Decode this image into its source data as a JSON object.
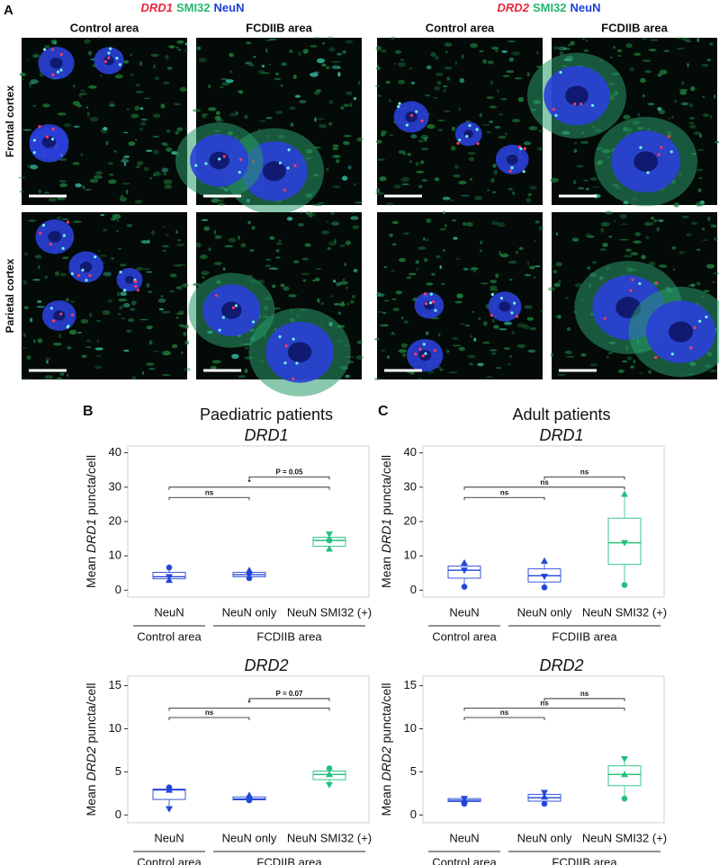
{
  "panel_a": {
    "label": "A",
    "stains": [
      [
        "DRD1",
        "SMI32",
        "NeuN"
      ],
      [
        "DRD2",
        "SMI32",
        "NeuN"
      ]
    ],
    "stain_colors": [
      "#e8253a",
      "#22b86c",
      "#1c3fd6"
    ],
    "columns": [
      "Control area",
      "FCDIIB area",
      "Control area",
      "FCDIIB area"
    ],
    "rows": [
      "Frontal cortex",
      "Parietal cortex"
    ]
  },
  "chart_data": [
    {
      "type": "box",
      "panel": "B",
      "title": "Paediatric patients",
      "subtitle": "DRD1",
      "y_label": [
        "Mean ",
        "DRD1",
        " puncta/cell"
      ],
      "categories": [
        "NeuN",
        "NeuN only",
        "NeuN SMI32 (+)"
      ],
      "colors": [
        "#2346d8",
        "#2346d8",
        "#22c07c"
      ],
      "groups": [
        {
          "label": "Control area",
          "count": 1
        },
        {
          "label": "FCDIIB area",
          "count": 2
        }
      ],
      "whisker_low": [
        2.9,
        3.5,
        12
      ],
      "q1": [
        3.3,
        3.9,
        12.8
      ],
      "median": [
        3.9,
        4.5,
        14.5
      ],
      "q3": [
        5.2,
        5.2,
        15.4
      ],
      "whisker_high": [
        6.6,
        5.8,
        16.3
      ],
      "patients": [
        {
          "marker": "circle",
          "values": [
            6.6,
            3.5,
            14.5
          ]
        },
        {
          "marker": "triangle-up",
          "values": [
            2.9,
            5.8,
            12
          ]
        },
        {
          "marker": "triangle-down",
          "values": [
            3.9,
            4.5,
            16.3
          ]
        }
      ],
      "comparisons": [
        {
          "from": 0,
          "to": 1,
          "label": "ns",
          "y": 27
        },
        {
          "from": 0,
          "to": 2,
          "label": "*",
          "y": 30
        },
        {
          "from": 1,
          "to": 2,
          "label": "P = 0.05",
          "y": 33
        }
      ],
      "ylim": [
        -2,
        42
      ],
      "yticks": [
        0,
        10,
        20,
        30,
        40
      ]
    },
    {
      "type": "box",
      "subtitle": "DRD2",
      "y_label": [
        "Mean ",
        "DRD2",
        " puncta/cell"
      ],
      "categories": [
        "NeuN",
        "NeuN only",
        "NeuN SMI32 (+)"
      ],
      "colors": [
        "#2346d8",
        "#2346d8",
        "#22c07c"
      ],
      "groups": [
        {
          "label": "Control area",
          "count": 1
        },
        {
          "label": "FCDIIB area",
          "count": 2
        }
      ],
      "whisker_low": [
        0.7,
        1.7,
        3.5
      ],
      "q1": [
        1.8,
        1.75,
        4.1
      ],
      "median": [
        2.9,
        1.85,
        4.7
      ],
      "q3": [
        3.0,
        2.1,
        5.1
      ],
      "whisker_high": [
        3.2,
        2.3,
        5.4
      ],
      "patients": [
        {
          "marker": "circle",
          "values": [
            3.2,
            1.7,
            5.4
          ]
        },
        {
          "marker": "triangle-up",
          "values": [
            2.9,
            2.3,
            4.7
          ]
        },
        {
          "marker": "triangle-down",
          "values": [
            0.7,
            1.8,
            3.5
          ]
        }
      ],
      "comparisons": [
        {
          "from": 0,
          "to": 1,
          "label": "ns",
          "y": 11.3
        },
        {
          "from": 0,
          "to": 2,
          "label": "*",
          "y": 12.4
        },
        {
          "from": 1,
          "to": 2,
          "label": "P = 0.07",
          "y": 13.5
        }
      ],
      "ylim": [
        -0.9,
        16.1
      ],
      "yticks": [
        0,
        5,
        10,
        15
      ]
    },
    {
      "type": "box",
      "panel": "C",
      "title": "Adult patients",
      "subtitle": "DRD1",
      "y_label": [
        "Mean ",
        "DRD1",
        " puncta/cell"
      ],
      "categories": [
        "NeuN",
        "NeuN only",
        "NeuN SMI32 (+)"
      ],
      "colors": [
        "#2346d8",
        "#2346d8",
        "#22c07c"
      ],
      "groups": [
        {
          "label": "Control area",
          "count": 1
        },
        {
          "label": "FCDIIB area",
          "count": 2
        }
      ],
      "whisker_low": [
        1,
        0.8,
        1.5
      ],
      "q1": [
        3.5,
        2.4,
        7.5
      ],
      "median": [
        5.8,
        4.2,
        13.8
      ],
      "q3": [
        7,
        6.2,
        21
      ],
      "whisker_high": [
        8,
        8.5,
        28
      ],
      "patients": [
        {
          "marker": "circle",
          "values": [
            1,
            0.8,
            1.5
          ]
        },
        {
          "marker": "triangle-up",
          "values": [
            8,
            8.5,
            28
          ]
        },
        {
          "marker": "triangle-down",
          "values": [
            5.8,
            4,
            13.8
          ]
        }
      ],
      "comparisons": [
        {
          "from": 0,
          "to": 1,
          "label": "ns",
          "y": 27
        },
        {
          "from": 0,
          "to": 2,
          "label": "ns",
          "y": 30
        },
        {
          "from": 1,
          "to": 2,
          "label": "ns",
          "y": 33
        }
      ],
      "ylim": [
        -2,
        42
      ],
      "yticks": [
        0,
        10,
        20,
        30,
        40
      ]
    },
    {
      "type": "box",
      "subtitle": "DRD2",
      "y_label": [
        "Mean ",
        "DRD2",
        " puncta/cell"
      ],
      "categories": [
        "NeuN",
        "NeuN only",
        "NeuN SMI32 (+)"
      ],
      "colors": [
        "#2346d8",
        "#2346d8",
        "#22c07c"
      ],
      "groups": [
        {
          "label": "Control area",
          "count": 1
        },
        {
          "label": "FCDIIB area",
          "count": 2
        }
      ],
      "whisker_low": [
        1.3,
        1.3,
        1.9
      ],
      "q1": [
        1.55,
        1.6,
        3.4
      ],
      "median": [
        1.7,
        2.0,
        4.7
      ],
      "q3": [
        1.9,
        2.4,
        5.7
      ],
      "whisker_high": [
        1.9,
        2.6,
        6.5
      ],
      "patients": [
        {
          "marker": "circle",
          "values": [
            1.3,
            1.3,
            1.9
          ]
        },
        {
          "marker": "triangle-up",
          "values": [
            1.7,
            2.1,
            4.7
          ]
        },
        {
          "marker": "triangle-down",
          "values": [
            1.9,
            2.6,
            6.5
          ]
        }
      ],
      "comparisons": [
        {
          "from": 0,
          "to": 1,
          "label": "ns",
          "y": 11.3
        },
        {
          "from": 0,
          "to": 2,
          "label": "ns",
          "y": 12.4
        },
        {
          "from": 1,
          "to": 2,
          "label": "ns",
          "y": 13.5
        }
      ],
      "ylim": [
        -0.9,
        16.1
      ],
      "yticks": [
        0,
        5,
        10,
        15
      ]
    }
  ]
}
